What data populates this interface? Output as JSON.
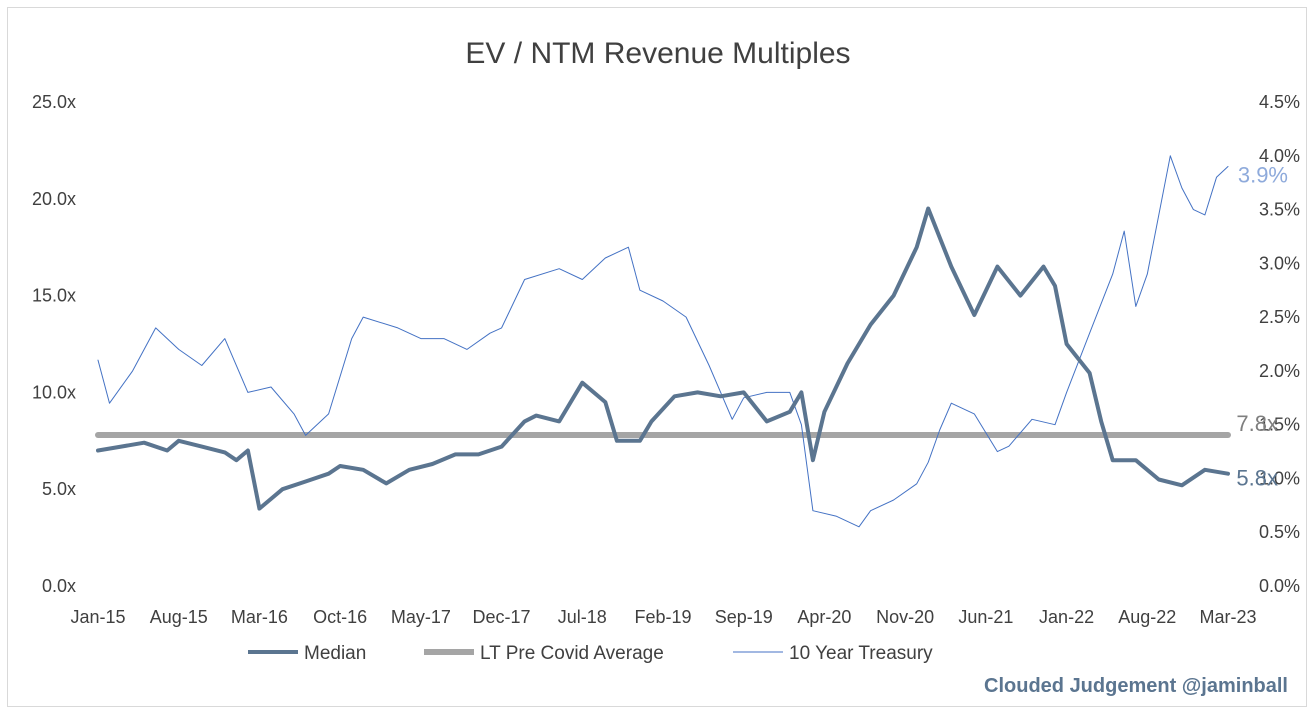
{
  "chart_data": {
    "type": "line",
    "title": "EV / NTM Revenue Multiples",
    "categories": [
      "Jan-15",
      "Aug-15",
      "Mar-16",
      "Oct-16",
      "May-17",
      "Dec-17",
      "Jul-18",
      "Feb-19",
      "Sep-19",
      "Apr-20",
      "Nov-20",
      "Jun-21",
      "Jan-22",
      "Aug-22",
      "Mar-23"
    ],
    "y_left": {
      "ticks": [
        "0.0x",
        "5.0x",
        "10.0x",
        "15.0x",
        "20.0x",
        "25.0x"
      ],
      "ylim": [
        0,
        25
      ]
    },
    "y_right": {
      "ticks": [
        "0.0%",
        "0.5%",
        "1.0%",
        "1.5%",
        "2.0%",
        "2.5%",
        "3.0%",
        "3.5%",
        "4.0%",
        "4.5%"
      ],
      "ylim": [
        0,
        4.5
      ]
    },
    "grid": false,
    "legend_position": "bottom",
    "series": [
      {
        "name": "Median",
        "axis": "left",
        "color": "#5b7590",
        "x": [
          "2015-01",
          "2015-03",
          "2015-05",
          "2015-07",
          "2015-08",
          "2015-10",
          "2015-12",
          "2016-01",
          "2016-02",
          "2016-03",
          "2016-05",
          "2016-07",
          "2016-09",
          "2016-10",
          "2016-12",
          "2017-02",
          "2017-04",
          "2017-06",
          "2017-08",
          "2017-10",
          "2017-12",
          "2018-02",
          "2018-03",
          "2018-05",
          "2018-07",
          "2018-09",
          "2018-10",
          "2018-12",
          "2019-01",
          "2019-03",
          "2019-05",
          "2019-07",
          "2019-09",
          "2019-11",
          "2020-01",
          "2020-02",
          "2020-03",
          "2020-04",
          "2020-06",
          "2020-08",
          "2020-10",
          "2020-12",
          "2021-01",
          "2021-02",
          "2021-03",
          "2021-05",
          "2021-07",
          "2021-09",
          "2021-11",
          "2021-12",
          "2022-01",
          "2022-03",
          "2022-04",
          "2022-05",
          "2022-07",
          "2022-09",
          "2022-11",
          "2023-01",
          "2023-03"
        ],
        "values": [
          7.0,
          7.2,
          7.4,
          7.0,
          7.5,
          7.2,
          6.9,
          6.5,
          7.0,
          4.0,
          5.0,
          5.4,
          5.8,
          6.2,
          6.0,
          5.3,
          6.0,
          6.3,
          6.8,
          6.8,
          7.2,
          8.5,
          8.8,
          8.5,
          10.5,
          9.5,
          7.5,
          7.5,
          8.5,
          9.8,
          10.0,
          9.8,
          10.0,
          8.5,
          9.0,
          10.0,
          6.5,
          9.0,
          11.5,
          13.5,
          15.0,
          17.5,
          19.5,
          18.0,
          16.5,
          14.0,
          16.5,
          15.0,
          16.5,
          15.5,
          12.5,
          11.0,
          8.5,
          6.5,
          6.5,
          5.5,
          5.2,
          6.0,
          5.8
        ],
        "end_label": "5.8x"
      },
      {
        "name": "LT Pre Covid Average",
        "axis": "left",
        "color": "#a5a5a5",
        "x": [
          "2015-01",
          "2023-03"
        ],
        "values": [
          7.8,
          7.8
        ],
        "end_label": "7.8x"
      },
      {
        "name": "10 Year Treasury",
        "axis": "right",
        "color": "#4472c4",
        "x": [
          "2015-01",
          "2015-02",
          "2015-04",
          "2015-06",
          "2015-08",
          "2015-10",
          "2015-12",
          "2016-02",
          "2016-04",
          "2016-06",
          "2016-07",
          "2016-09",
          "2016-11",
          "2016-12",
          "2017-03",
          "2017-05",
          "2017-07",
          "2017-09",
          "2017-11",
          "2017-12",
          "2018-02",
          "2018-05",
          "2018-07",
          "2018-09",
          "2018-11",
          "2018-12",
          "2019-02",
          "2019-04",
          "2019-06",
          "2019-08",
          "2019-09",
          "2019-11",
          "2020-01",
          "2020-02",
          "2020-03",
          "2020-05",
          "2020-07",
          "2020-08",
          "2020-10",
          "2020-12",
          "2021-01",
          "2021-02",
          "2021-03",
          "2021-05",
          "2021-07",
          "2021-08",
          "2021-10",
          "2021-12",
          "2022-01",
          "2022-03",
          "2022-05",
          "2022-06",
          "2022-07",
          "2022-08",
          "2022-10",
          "2022-11",
          "2022-12",
          "2023-01",
          "2023-02",
          "2023-03"
        ],
        "values": [
          2.1,
          1.7,
          2.0,
          2.4,
          2.2,
          2.05,
          2.3,
          1.8,
          1.85,
          1.6,
          1.4,
          1.6,
          2.3,
          2.5,
          2.4,
          2.3,
          2.3,
          2.2,
          2.35,
          2.4,
          2.85,
          2.95,
          2.85,
          3.05,
          3.15,
          2.75,
          2.65,
          2.5,
          2.05,
          1.55,
          1.75,
          1.8,
          1.8,
          1.5,
          0.7,
          0.65,
          0.55,
          0.7,
          0.8,
          0.95,
          1.15,
          1.45,
          1.7,
          1.6,
          1.25,
          1.3,
          1.55,
          1.5,
          1.8,
          2.35,
          2.9,
          3.3,
          2.6,
          2.9,
          4.0,
          3.7,
          3.5,
          3.45,
          3.8,
          3.9
        ],
        "end_label": "3.9%"
      }
    ]
  },
  "watermark": "Clouded Judgement @jaminball"
}
